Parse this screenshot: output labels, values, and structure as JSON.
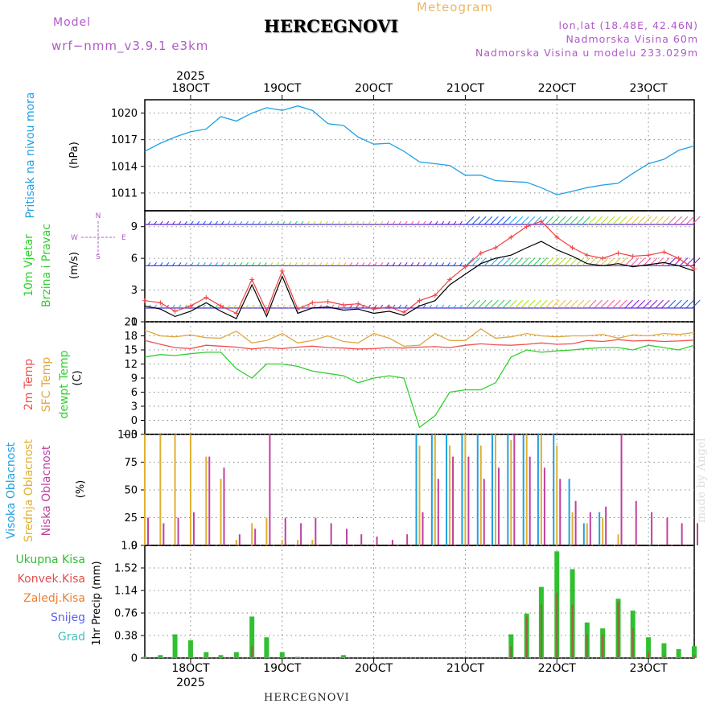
{
  "header": {
    "meteogram": "Meteogram",
    "model_label": "Model",
    "model": "wrf−nmm_v3.9.1  e3km",
    "title": "HERCEGNOVI",
    "lonlat": "lon,lat (18.48E, 42.46N)",
    "altitude": "Nadmorska Visina 60m",
    "model_altitude": "Nadmorska Visina u modelu 233.029m"
  },
  "footer": {
    "title": "HERCEGNOVI",
    "credit": "made by Angel"
  },
  "colors": {
    "pressure": "#1ea0e6",
    "wind_speed": "#000000",
    "wind_gust": "#f04040",
    "t2m": "#f05050",
    "tsfc": "#e0a840",
    "dewpt": "#30d030",
    "high_cloud": "#20a0e0",
    "mid_cloud": "#e0b030",
    "low_cloud": "#c040a0",
    "precip_total": "#30c030",
    "precip_conv": "#e05050",
    "precip_frozen": "#f08030",
    "snow": "#6060f0",
    "graupel": "#40c0c0"
  },
  "chart_data": [
    {
      "type": "line",
      "name": "pressure",
      "ylabel_left": "Pritisak na nivou mora",
      "ylabel_unit": "(hPa)",
      "ylim": [
        1009,
        1021.5
      ],
      "yticks": [
        "1011",
        "1014",
        "1017",
        "1020"
      ],
      "ytick_values": [
        1011,
        1014,
        1017,
        1020
      ],
      "x_days": [
        0.0,
        0.17,
        0.33,
        0.5,
        0.67,
        0.83,
        1.0,
        1.17,
        1.33,
        1.5,
        1.67,
        1.83,
        2.0,
        2.17,
        2.33,
        2.5,
        2.67,
        2.83,
        3.0,
        3.17,
        3.33,
        3.5,
        3.67,
        3.83,
        4.0,
        4.17,
        4.33,
        4.5,
        4.67,
        4.83,
        5.0,
        5.17,
        5.33,
        5.5,
        5.67,
        5.83,
        6.0
      ],
      "values": [
        1015.7,
        1016.6,
        1017.3,
        1017.9,
        1018.2,
        1019.6,
        1019.1,
        1020.0,
        1020.6,
        1020.3,
        1020.8,
        1020.3,
        1018.8,
        1018.6,
        1017.3,
        1016.5,
        1016.6,
        1015.7,
        1014.5,
        1014.3,
        1014.1,
        1013.0,
        1013.0,
        1012.4,
        1012.3,
        1012.2,
        1011.6,
        1010.8,
        1011.2,
        1011.6,
        1011.9,
        1012.1,
        1013.2,
        1014.3,
        1014.8,
        1015.8,
        1016.3
      ]
    },
    {
      "type": "line",
      "name": "wind",
      "ylabel_left1": "10m Vjetar",
      "ylabel_left2": "Brzina i Pravac",
      "ylabel_unit": "(m/s)",
      "compass": {
        "n": "N",
        "s": "S",
        "w": "W",
        "e": "E"
      },
      "ylim": [
        0,
        10.5
      ],
      "yticks": [
        "0",
        "3",
        "6",
        "9"
      ],
      "ytick_values": [
        0,
        3,
        6,
        9
      ],
      "x_days": [
        0.0,
        0.17,
        0.33,
        0.5,
        0.67,
        0.83,
        1.0,
        1.17,
        1.33,
        1.5,
        1.67,
        1.83,
        2.0,
        2.17,
        2.33,
        2.5,
        2.67,
        2.83,
        3.0,
        3.17,
        3.33,
        3.5,
        3.67,
        3.83,
        4.0,
        4.17,
        4.33,
        4.5,
        4.67,
        4.83,
        5.0,
        5.17,
        5.33,
        5.5,
        5.67,
        5.83,
        6.0
      ],
      "series": [
        {
          "name": "speed",
          "values": [
            1.5,
            1.2,
            0.5,
            1.0,
            1.8,
            1.0,
            0.3,
            3.5,
            0.5,
            4.3,
            0.8,
            1.3,
            1.4,
            1.1,
            1.2,
            0.8,
            1.0,
            0.6,
            1.5,
            2.0,
            3.5,
            4.5,
            5.5,
            6.0,
            6.3,
            7.0,
            7.6,
            6.8,
            6.2,
            5.5,
            5.3,
            5.5,
            5.2,
            5.4,
            5.6,
            5.3,
            4.8
          ]
        },
        {
          "name": "gust",
          "values": [
            2.0,
            1.8,
            1.0,
            1.5,
            2.3,
            1.5,
            0.8,
            4.0,
            1.0,
            4.8,
            1.2,
            1.8,
            1.9,
            1.6,
            1.7,
            1.2,
            1.4,
            0.9,
            2.0,
            2.5,
            4.0,
            5.2,
            6.5,
            7.0,
            8.0,
            9.0,
            9.5,
            8.0,
            7.0,
            6.3,
            6.0,
            6.5,
            6.2,
            6.3,
            6.6,
            6.0,
            5.0
          ]
        }
      ]
    },
    {
      "type": "line",
      "name": "temperature",
      "ylabel_left1": "2m Temp",
      "ylabel_left2": "SFC Temp",
      "ylabel_left3": "dewpt Temp",
      "ylabel_unit": "(C)",
      "ylim": [
        -3,
        21
      ],
      "yticks": [
        "−3",
        "0",
        "3",
        "6",
        "9",
        "12",
        "15",
        "18",
        "21"
      ],
      "ytick_values": [
        -3,
        0,
        3,
        6,
        9,
        12,
        15,
        18,
        21
      ],
      "x_days": [
        0.0,
        0.17,
        0.33,
        0.5,
        0.67,
        0.83,
        1.0,
        1.17,
        1.33,
        1.5,
        1.67,
        1.83,
        2.0,
        2.17,
        2.33,
        2.5,
        2.67,
        2.83,
        3.0,
        3.17,
        3.33,
        3.5,
        3.67,
        3.83,
        4.0,
        4.17,
        4.33,
        4.5,
        4.67,
        4.83,
        5.0,
        5.17,
        5.33,
        5.5,
        5.67,
        5.83,
        6.0
      ],
      "series": [
        {
          "name": "2m Temp",
          "values": [
            17.0,
            16.2,
            15.5,
            15.3,
            16.0,
            15.8,
            15.6,
            15.2,
            15.5,
            15.3,
            15.6,
            15.8,
            15.5,
            15.4,
            15.2,
            15.3,
            15.5,
            15.4,
            15.6,
            15.7,
            15.5,
            16.0,
            16.3,
            16.1,
            16.0,
            16.2,
            16.5,
            16.2,
            16.3,
            17.0,
            16.8,
            17.2,
            16.9,
            17.0,
            16.8,
            16.9,
            17.1
          ]
        },
        {
          "name": "SFC Temp",
          "values": [
            19.2,
            18.0,
            17.8,
            18.2,
            17.6,
            17.5,
            19.0,
            16.5,
            17.0,
            18.5,
            16.5,
            17.0,
            18.0,
            16.8,
            16.5,
            18.5,
            17.5,
            15.8,
            16.0,
            18.5,
            17.0,
            17.0,
            19.5,
            17.5,
            17.8,
            18.5,
            18.0,
            17.8,
            18.0,
            18.0,
            18.3,
            17.5,
            18.2,
            18.0,
            18.5,
            18.3,
            18.7
          ]
        },
        {
          "name": "dewpt Temp",
          "values": [
            13.5,
            14.0,
            13.8,
            14.2,
            14.5,
            14.5,
            11.0,
            9.0,
            12.0,
            12.0,
            11.5,
            10.5,
            10.0,
            9.5,
            8.0,
            9.0,
            9.5,
            9.0,
            -1.5,
            1.0,
            6.0,
            6.5,
            6.5,
            8.0,
            13.5,
            15.0,
            14.5,
            14.8,
            15.0,
            15.3,
            15.5,
            15.5,
            15.0,
            16.0,
            15.5,
            15.0,
            16.0
          ]
        }
      ]
    },
    {
      "type": "bar",
      "name": "cloud cover",
      "ylabel_left1": "Visoka Oblacnost",
      "ylabel_left2": "Srednja Oblacnost",
      "ylabel_left3": "Niska Oblacnost",
      "ylabel_unit": "(%)",
      "ylim": [
        0,
        100
      ],
      "yticks": [
        "0",
        "25",
        "50",
        "75",
        "100"
      ],
      "ytick_values": [
        0,
        25,
        50,
        75,
        100
      ],
      "x_days": [
        0.0,
        0.17,
        0.33,
        0.5,
        0.67,
        0.83,
        1.0,
        1.17,
        1.33,
        1.5,
        1.67,
        1.83,
        2.0,
        2.17,
        2.33,
        2.5,
        2.67,
        2.83,
        3.0,
        3.17,
        3.33,
        3.5,
        3.67,
        3.83,
        4.0,
        4.17,
        4.33,
        4.5,
        4.67,
        4.83,
        5.0,
        5.17,
        5.33,
        5.5,
        5.67,
        5.83,
        6.0
      ],
      "series": [
        {
          "name": "high",
          "values": [
            0,
            0,
            0,
            0,
            0,
            0,
            0,
            0,
            0,
            0,
            0,
            0,
            0,
            0,
            0,
            0,
            0,
            0,
            100,
            100,
            100,
            100,
            100,
            100,
            100,
            100,
            100,
            100,
            60,
            20,
            30,
            0,
            0,
            0,
            0,
            0,
            0
          ]
        },
        {
          "name": "mid",
          "values": [
            100,
            100,
            100,
            100,
            80,
            60,
            5,
            20,
            25,
            5,
            5,
            5,
            0,
            0,
            0,
            0,
            0,
            0,
            90,
            100,
            90,
            100,
            90,
            100,
            95,
            100,
            100,
            90,
            30,
            20,
            25,
            10,
            0,
            0,
            0,
            0,
            0
          ]
        },
        {
          "name": "low",
          "values": [
            25,
            20,
            25,
            30,
            80,
            70,
            10,
            15,
            100,
            25,
            20,
            25,
            20,
            15,
            10,
            8,
            5,
            10,
            30,
            60,
            80,
            80,
            60,
            70,
            100,
            80,
            70,
            60,
            40,
            30,
            35,
            100,
            40,
            30,
            25,
            20,
            20
          ]
        }
      ]
    },
    {
      "type": "bar",
      "name": "precipitation",
      "legend": [
        "Ukupna Kisa",
        "Konvek.Kisa",
        "Zaledj.Kisa",
        "Snijeg",
        "Grad"
      ],
      "ylabel_unit": "1hr Precip (mm)",
      "ylim": [
        0,
        1.9
      ],
      "yticks": [
        "0",
        "0.38",
        "0.76",
        "1.14",
        "1.52",
        "1.9"
      ],
      "ytick_values": [
        0,
        0.38,
        0.76,
        1.14,
        1.52,
        1.9
      ],
      "x_days": [
        0.0,
        0.17,
        0.33,
        0.5,
        0.67,
        0.83,
        1.0,
        1.17,
        1.33,
        1.5,
        1.67,
        1.83,
        2.0,
        2.17,
        2.33,
        2.5,
        2.67,
        2.83,
        3.0,
        3.17,
        3.33,
        3.5,
        3.67,
        3.83,
        4.0,
        4.17,
        4.33,
        4.5,
        4.67,
        4.83,
        5.0,
        5.17,
        5.33,
        5.5,
        5.67,
        5.83,
        6.0
      ],
      "series": [
        {
          "name": "total",
          "values": [
            0.02,
            0.05,
            0.4,
            0.3,
            0.1,
            0.05,
            0.1,
            0.7,
            0.35,
            0.1,
            0.02,
            0.0,
            0.0,
            0.05,
            0.0,
            0.0,
            0.0,
            0.0,
            0.0,
            0.0,
            0.0,
            0.0,
            0.0,
            0.0,
            0.4,
            0.75,
            1.2,
            1.8,
            1.5,
            0.6,
            0.5,
            1.0,
            0.8,
            0.35,
            0.25,
            0.15,
            0.2
          ]
        },
        {
          "name": "convective",
          "values": [
            0,
            0,
            0,
            0,
            0,
            0,
            0,
            0.2,
            0,
            0,
            0,
            0,
            0,
            0,
            0,
            0,
            0,
            0,
            0,
            0,
            0,
            0,
            0,
            0,
            0.2,
            0.7,
            0.9,
            1.1,
            0.9,
            0.4,
            0.4,
            0.95,
            0.5,
            0.1,
            0.05,
            0,
            0.05
          ]
        }
      ]
    }
  ],
  "x_axis": {
    "date_labels": [
      "18OCT",
      "19OCT",
      "20OCT",
      "21OCT",
      "22OCT",
      "23OCT"
    ],
    "date_days": [
      0.5,
      1.5,
      2.5,
      3.5,
      4.5,
      5.5
    ],
    "year": "2025",
    "range_days": [
      0,
      6.0
    ]
  }
}
